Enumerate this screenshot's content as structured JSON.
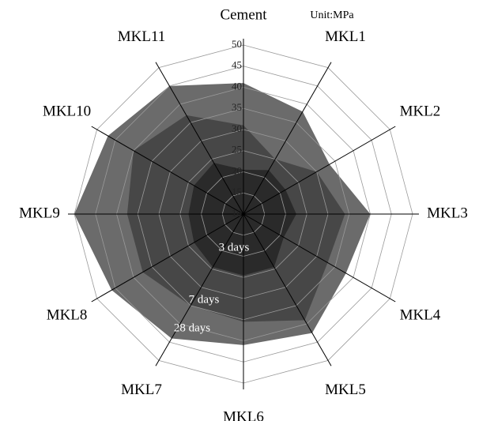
{
  "chart_data": {
    "type": "radar",
    "categories": [
      "Cement",
      "MKL1",
      "MKL2",
      "MKL3",
      "MKL4",
      "MKL5",
      "MKL6",
      "MKL7",
      "MKL8",
      "MKL9",
      "MKL10",
      "MKL11"
    ],
    "annotation": "Unit:MPa",
    "rlim": [
      10,
      50
    ],
    "rticks": [
      10,
      15,
      20,
      25,
      30,
      35,
      40,
      45,
      50
    ],
    "grid": true,
    "series": [
      {
        "name": "3 days",
        "color": "#2a2a2a",
        "values": [
          20.5,
          22,
          21.5,
          22.5,
          21,
          24.5,
          24.5,
          24.5,
          23.5,
          23,
          23.5,
          24
        ]
      },
      {
        "name": "7 days",
        "color": "#474747",
        "values": [
          31,
          25,
          30,
          34,
          33,
          39,
          35.5,
          35,
          37.5,
          37.5,
          40,
          37
        ]
      },
      {
        "name": "28 days",
        "color": "#6b6b6b",
        "values": [
          41,
          38,
          33.5,
          40,
          38,
          42.5,
          41,
          44,
          46,
          50,
          47,
          45
        ]
      }
    ]
  }
}
